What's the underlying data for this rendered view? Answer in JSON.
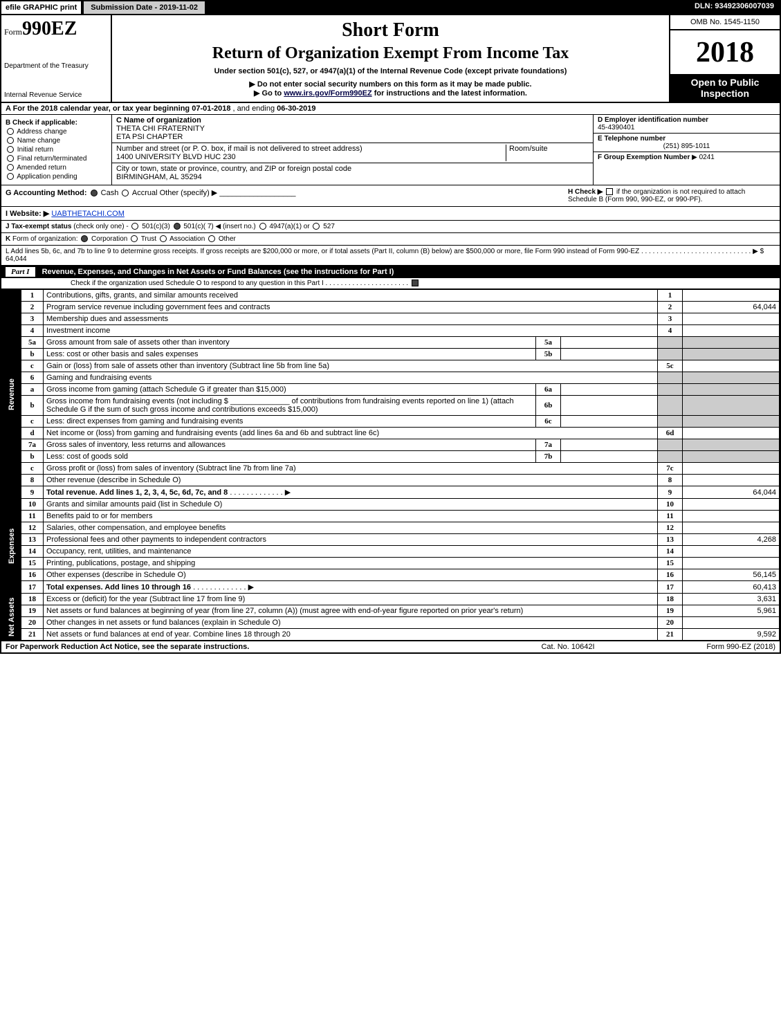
{
  "topbar": {
    "efile": "efile GRAPHIC print",
    "subdate_label": "Submission Date - 2019-11-02",
    "dln": "DLN: 93492306007039"
  },
  "header": {
    "form_prefix": "Form",
    "form_number": "990EZ",
    "dept": "Department of the Treasury",
    "irs": "Internal Revenue Service",
    "short_form": "Short Form",
    "title": "Return of Organization Exempt From Income Tax",
    "subtitle": "Under section 501(c), 527, or 4947(a)(1) of the Internal Revenue Code (except private foundations)",
    "instr1_pre": "▶ Do not enter social security numbers on this form as it may be made public.",
    "instr2_pre": "▶ Go to ",
    "instr2_link": "www.irs.gov/Form990EZ",
    "instr2_post": " for instructions and the latest information.",
    "omb": "OMB No. 1545-1150",
    "year": "2018",
    "open": "Open to Public Inspection"
  },
  "rowA": {
    "text_pre": "A  For the 2018 calendar year, or tax year beginning ",
    "begin": "07-01-2018",
    "mid": " , and ending ",
    "end": "06-30-2019"
  },
  "colB": {
    "title": "B  Check if applicable:",
    "items": [
      "Address change",
      "Name change",
      "Initial return",
      "Final return/terminated",
      "Amended return",
      "Application pending"
    ]
  },
  "colC": {
    "c_label": "C Name of organization",
    "c_name1": "THETA CHI FRATERNITY",
    "c_name2": "ETA PSI CHAPTER",
    "addr_label": "Number and street (or P. O. box, if mail is not delivered to street address)",
    "addr": "1400 UNIVERSITY BLVD HUC 230",
    "room_label": "Room/suite",
    "city_label": "City or town, state or province, country, and ZIP or foreign postal code",
    "city": "BIRMINGHAM, AL 35294"
  },
  "colDE": {
    "d_label": "D Employer identification number",
    "d_val": "45-4390401",
    "e_label": "E Telephone number",
    "e_val": "(251) 895-1011",
    "f_label": "F Group Exemption Number",
    "f_val": "▶ 0241"
  },
  "ghij": {
    "g_label": "G Accounting Method:",
    "g_cash": "Cash",
    "g_accrual": "Accrual",
    "g_other": "Other (specify) ▶",
    "h_label": "H  Check ▶",
    "h_text": "if the organization is not required to attach Schedule B (Form 990, 990-EZ, or 990-PF).",
    "i_label": "I Website: ▶",
    "i_val": "UABTHETACHI.COM",
    "j_label": "J Tax-exempt status",
    "j_sub": "(check only one) - ",
    "j_opts": [
      "501(c)(3)",
      "501(c)( 7) ◀ (insert no.)",
      "4947(a)(1) or",
      "527"
    ]
  },
  "k": "K Form of organization:     Corporation     Trust     Association     Other",
  "l": {
    "text": "L Add lines 5b, 6c, and 7b to line 9 to determine gross receipts. If gross receipts are $200,000 or more, or if total assets (Part II, column (B) below) are $500,000 or more, file Form 990 instead of Form 990-EZ  .  .  .  .  .  .  .  .  .  .  .  .  .  .  .  .  .  .  .  .  .  .  .  .  .  .  .  .  .  ▶ $ ",
    "amount": "64,044"
  },
  "part1": {
    "label": "Part I",
    "desc": "Revenue, Expenses, and Changes in Net Assets or Fund Balances (see the instructions for Part I)",
    "check_text": "Check if the organization used Schedule O to respond to any question in this Part I .  .  .  .  .  .  .  .  .  .  .  .  .  .  .  .  .  .  .  .  .  ."
  },
  "sections": {
    "revenue": "Revenue",
    "expenses": "Expenses",
    "netassets": "Net Assets"
  },
  "lines": [
    {
      "sec": "revenue",
      "n": "1",
      "desc": "Contributions, gifts, grants, and similar amounts received",
      "rn": "1",
      "rv": ""
    },
    {
      "sec": "revenue",
      "n": "2",
      "desc": "Program service revenue including government fees and contracts",
      "rn": "2",
      "rv": "64,044"
    },
    {
      "sec": "revenue",
      "n": "3",
      "desc": "Membership dues and assessments",
      "rn": "3",
      "rv": ""
    },
    {
      "sec": "revenue",
      "n": "4",
      "desc": "Investment income",
      "rn": "4",
      "rv": ""
    },
    {
      "sec": "revenue",
      "n": "5a",
      "desc": "Gross amount from sale of assets other than inventory",
      "mid": "5a",
      "midv": "",
      "grey": true
    },
    {
      "sec": "revenue",
      "n": "b",
      "desc": "Less: cost or other basis and sales expenses",
      "mid": "5b",
      "midv": "",
      "grey": true
    },
    {
      "sec": "revenue",
      "n": "c",
      "desc": "Gain or (loss) from sale of assets other than inventory (Subtract line 5b from line 5a)",
      "rn": "5c",
      "rv": ""
    },
    {
      "sec": "revenue",
      "n": "6",
      "desc": "Gaming and fundraising events",
      "grey": true
    },
    {
      "sec": "revenue",
      "n": "a",
      "desc": "Gross income from gaming (attach Schedule G if greater than $15,000)",
      "mid": "6a",
      "midv": "",
      "grey": true
    },
    {
      "sec": "revenue",
      "n": "b",
      "desc": "Gross income from fundraising events (not including $ ______________ of contributions from fundraising events reported on line 1) (attach Schedule G if the sum of such gross income and contributions exceeds $15,000)",
      "mid": "6b",
      "midv": "",
      "grey": true
    },
    {
      "sec": "revenue",
      "n": "c",
      "desc": "Less: direct expenses from gaming and fundraising events",
      "mid": "6c",
      "midv": "",
      "grey": true
    },
    {
      "sec": "revenue",
      "n": "d",
      "desc": "Net income or (loss) from gaming and fundraising events (add lines 6a and 6b and subtract line 6c)",
      "rn": "6d",
      "rv": ""
    },
    {
      "sec": "revenue",
      "n": "7a",
      "desc": "Gross sales of inventory, less returns and allowances",
      "mid": "7a",
      "midv": "",
      "grey": true
    },
    {
      "sec": "revenue",
      "n": "b",
      "desc": "Less: cost of goods sold",
      "mid": "7b",
      "midv": "",
      "grey": true
    },
    {
      "sec": "revenue",
      "n": "c",
      "desc": "Gross profit or (loss) from sales of inventory (Subtract line 7b from line 7a)",
      "rn": "7c",
      "rv": ""
    },
    {
      "sec": "revenue",
      "n": "8",
      "desc": "Other revenue (describe in Schedule O)",
      "rn": "8",
      "rv": ""
    },
    {
      "sec": "revenue",
      "n": "9",
      "desc": "Total revenue. Add lines 1, 2, 3, 4, 5c, 6d, 7c, and 8",
      "bold": true,
      "arrow": true,
      "rn": "9",
      "rv": "64,044"
    },
    {
      "sec": "expenses",
      "n": "10",
      "desc": "Grants and similar amounts paid (list in Schedule O)",
      "rn": "10",
      "rv": ""
    },
    {
      "sec": "expenses",
      "n": "11",
      "desc": "Benefits paid to or for members",
      "rn": "11",
      "rv": ""
    },
    {
      "sec": "expenses",
      "n": "12",
      "desc": "Salaries, other compensation, and employee benefits",
      "rn": "12",
      "rv": ""
    },
    {
      "sec": "expenses",
      "n": "13",
      "desc": "Professional fees and other payments to independent contractors",
      "rn": "13",
      "rv": "4,268"
    },
    {
      "sec": "expenses",
      "n": "14",
      "desc": "Occupancy, rent, utilities, and maintenance",
      "rn": "14",
      "rv": ""
    },
    {
      "sec": "expenses",
      "n": "15",
      "desc": "Printing, publications, postage, and shipping",
      "rn": "15",
      "rv": ""
    },
    {
      "sec": "expenses",
      "n": "16",
      "desc": "Other expenses (describe in Schedule O)",
      "rn": "16",
      "rv": "56,145"
    },
    {
      "sec": "expenses",
      "n": "17",
      "desc": "Total expenses. Add lines 10 through 16",
      "bold": true,
      "arrow": true,
      "rn": "17",
      "rv": "60,413"
    },
    {
      "sec": "netassets",
      "n": "18",
      "desc": "Excess or (deficit) for the year (Subtract line 17 from line 9)",
      "rn": "18",
      "rv": "3,631"
    },
    {
      "sec": "netassets",
      "n": "19",
      "desc": "Net assets or fund balances at beginning of year (from line 27, column (A)) (must agree with end-of-year figure reported on prior year's return)",
      "rn": "19",
      "rv": "5,961"
    },
    {
      "sec": "netassets",
      "n": "20",
      "desc": "Other changes in net assets or fund balances (explain in Schedule O)",
      "rn": "20",
      "rv": ""
    },
    {
      "sec": "netassets",
      "n": "21",
      "desc": "Net assets or fund balances at end of year. Combine lines 18 through 20",
      "rn": "21",
      "rv": "9,592"
    }
  ],
  "footer": {
    "left": "For Paperwork Reduction Act Notice, see the separate instructions.",
    "center": "Cat. No. 10642I",
    "right": "Form 990-EZ (2018)"
  }
}
